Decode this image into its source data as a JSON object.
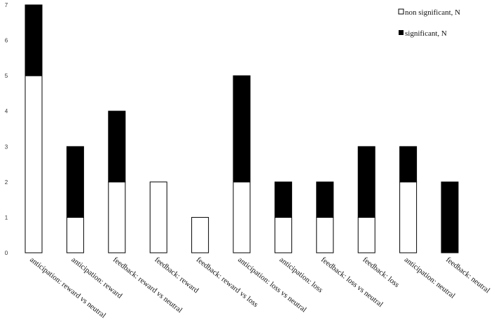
{
  "chart_data": {
    "type": "bar",
    "stacked": true,
    "title": "",
    "xlabel": "",
    "ylabel": "",
    "ylim": [
      0,
      7
    ],
    "yticks": [
      0,
      1,
      2,
      3,
      4,
      5,
      6,
      7
    ],
    "grid": false,
    "legend_position": "top-right",
    "categories": [
      "anticipation: reward vs neutral",
      "anticipation: reward",
      "feedback: reward vs neutral",
      "feedback: reward",
      "feedback: reward vs loss",
      "anticipation: loss vs neutral",
      "anticipation: loss",
      "feedback: loss vs neutral",
      "feedback: loss",
      "anticipation: neutral",
      "feedback: neutral"
    ],
    "series": [
      {
        "name": "non significant, N",
        "color": "#ffffff",
        "values": [
          5,
          1,
          2,
          2,
          1,
          2,
          1,
          1,
          1,
          2,
          0
        ]
      },
      {
        "name": "significant, N",
        "color": "#000000",
        "values": [
          2,
          2,
          2,
          0,
          0,
          3,
          1,
          1,
          2,
          1,
          2
        ]
      }
    ]
  }
}
